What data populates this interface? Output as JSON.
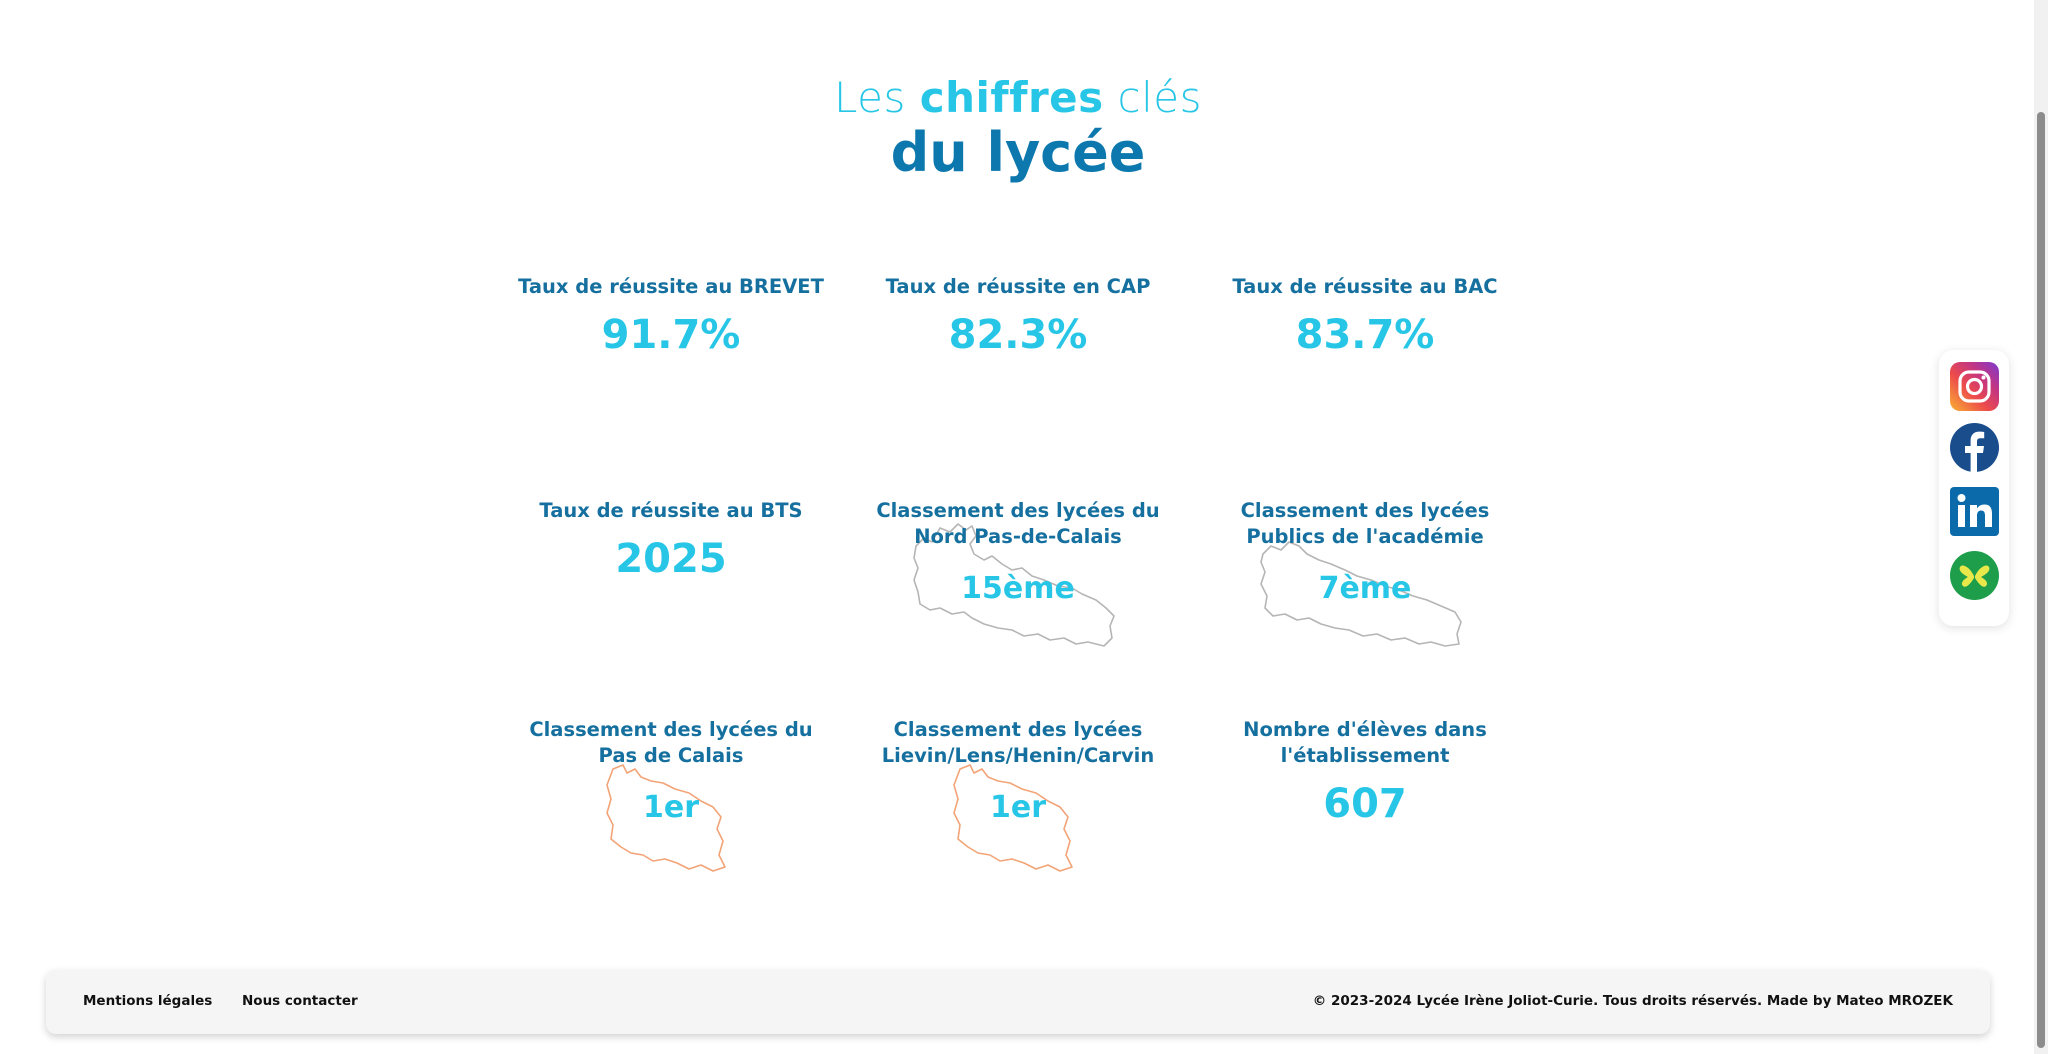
{
  "section_title": {
    "line1_prefix": "Les",
    "line1_bold": "chiffres",
    "line1_suffix": "clés",
    "line2": "du lycée"
  },
  "stats": [
    {
      "label": "Taux de réussite au BREVET",
      "value": "91.7%"
    },
    {
      "label": "Taux de réussite en CAP",
      "value": "82.3%"
    },
    {
      "label": "Taux de réussite au BAC",
      "value": "83.7%"
    },
    {
      "label": "Taux de réussite au BTS",
      "value": "2025"
    },
    {
      "label": "Classement des lycées du Nord Pas-de-Calais",
      "value": "15ème"
    },
    {
      "label": "Classement des lycées Publics de l'académie",
      "value": "7ème"
    },
    {
      "label": "Classement des lycées du Pas de Calais",
      "value": "1er"
    },
    {
      "label": "Classement des lycées Lievin/Lens/Henin/Carvin",
      "value": "1er"
    },
    {
      "label": "Nombre d'élèves dans l'établissement",
      "value": "607"
    }
  ],
  "social": [
    {
      "name": "Instagram",
      "icon": "instagram-icon"
    },
    {
      "name": "Facebook",
      "icon": "facebook-icon"
    },
    {
      "name": "LinkedIn",
      "icon": "linkedin-icon"
    },
    {
      "name": "ENT",
      "icon": "butterfly-icon"
    }
  ],
  "footer": {
    "legal": "Mentions légales",
    "contact": "Nous contacter",
    "copyright": "© 2023-2024 Lycée Irène Joliot-Curie. Tous droits réservés. Made by Mateo MROZEK"
  },
  "colors": {
    "accent_light": "#27c6e6",
    "accent_dark": "#0d78ad",
    "label": "#15709f",
    "map_region": "#b5b5b5",
    "map_department": "#f2a477"
  }
}
